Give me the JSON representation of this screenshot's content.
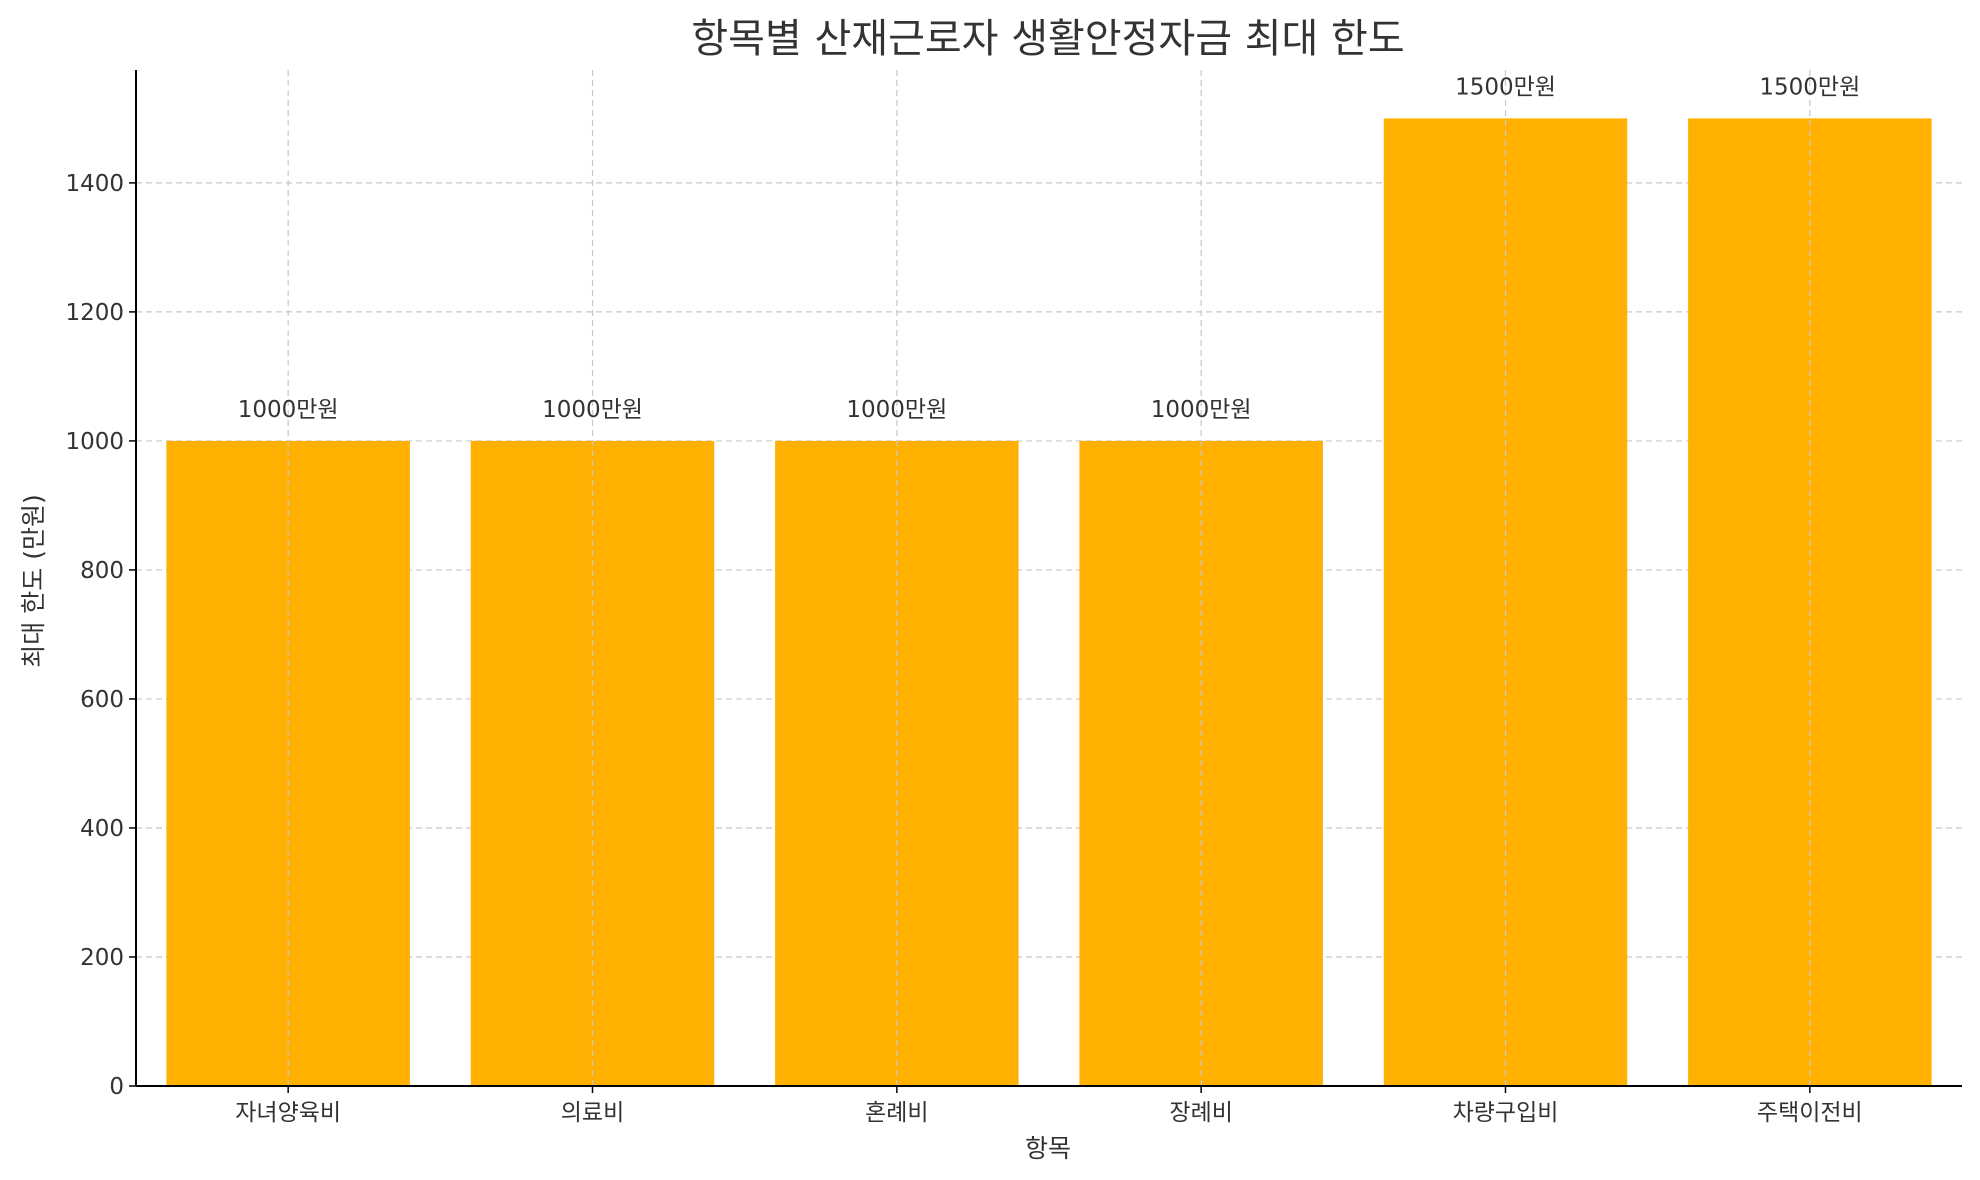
{
  "chart_data": {
    "type": "bar",
    "title": "항목별 산재근로자 생활안정자금 최대 한도",
    "xlabel": "항목",
    "ylabel": "최대 한도 (만원)",
    "categories": [
      "자녀양육비",
      "의료비",
      "혼례비",
      "장례비",
      "차량구입비",
      "주택이전비"
    ],
    "values": [
      1000,
      1000,
      1000,
      1000,
      1500,
      1500
    ],
    "data_labels": [
      "1000만원",
      "1000만원",
      "1000만원",
      "1000만원",
      "1500만원",
      "1500만원"
    ],
    "ylim": [
      0,
      1575
    ],
    "yticks": [
      0,
      200,
      400,
      600,
      800,
      1000,
      1200,
      1400
    ],
    "grid": true,
    "bar_color": "#FFB000"
  }
}
